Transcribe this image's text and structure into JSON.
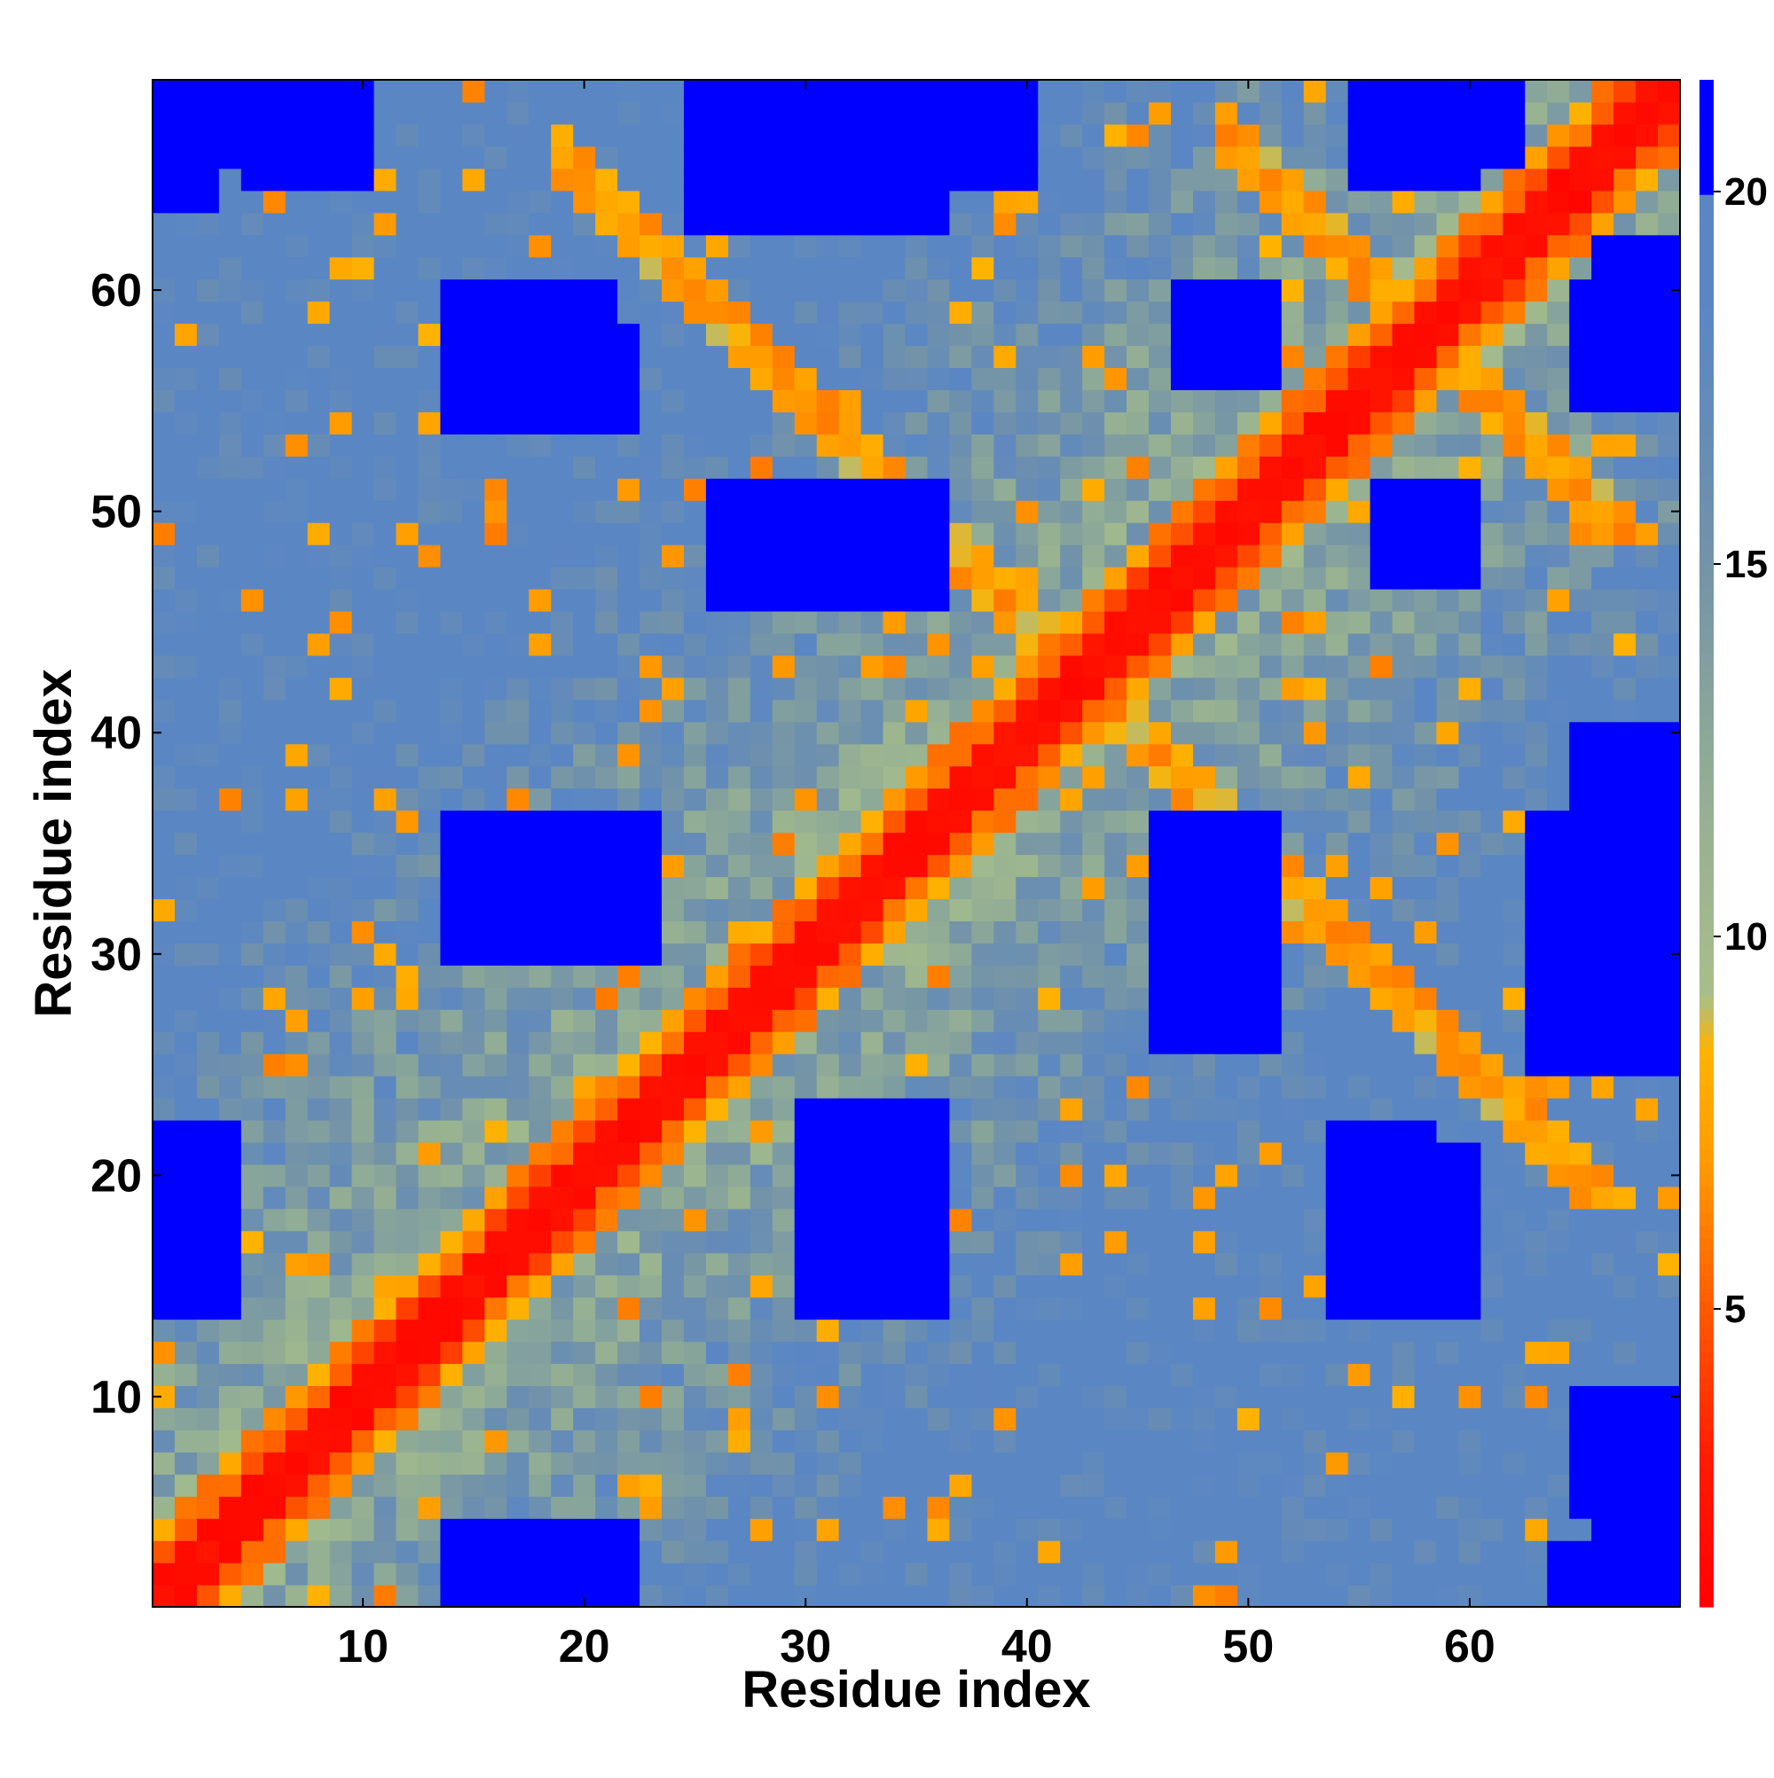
{
  "chart_data": {
    "type": "heatmap",
    "title": "",
    "xlabel": "Residue index",
    "ylabel": "Residue index",
    "xlim": [
      0.5,
      69.5
    ],
    "ylim": [
      0.5,
      69.5
    ],
    "n_residues": 69,
    "x_ticks": [
      10,
      20,
      30,
      40,
      50,
      60
    ],
    "y_ticks": [
      10,
      20,
      30,
      40,
      50,
      60
    ],
    "colorbar": {
      "range": [
        1,
        21.5
      ],
      "ticks": [
        5,
        10,
        15,
        20
      ],
      "stops": [
        {
          "value": 1.0,
          "color": "#ff0000"
        },
        {
          "value": 3.0,
          "color": "#ff1c00"
        },
        {
          "value": 5.0,
          "color": "#ff5a00"
        },
        {
          "value": 7.0,
          "color": "#ff9c00"
        },
        {
          "value": 8.5,
          "color": "#ffb300"
        },
        {
          "value": 9.2,
          "color": "#a8bf8a"
        },
        {
          "value": 12.0,
          "color": "#93ae94"
        },
        {
          "value": 15.0,
          "color": "#7393a8"
        },
        {
          "value": 18.5,
          "color": "#5a86c4"
        },
        {
          "value": 19.9,
          "color": "#5a86c4"
        },
        {
          "value": 20.0,
          "color": "#0000ff"
        },
        {
          "value": 21.5,
          "color": "#0000ff"
        }
      ]
    },
    "value_description": "Pairwise residue distance matrix (symmetric). Values of 20 and above shown in blue.",
    "blue_regions": [
      [
        16,
        22,
        30,
        36
      ],
      [
        30,
        36,
        16,
        22
      ],
      [
        30,
        36,
        14,
        23
      ],
      [
        14,
        23,
        30,
        36
      ],
      [
        30,
        35,
        47,
        51
      ],
      [
        47,
        51,
        30,
        35
      ],
      [
        47,
        51,
        56,
        60
      ],
      [
        56,
        60,
        47,
        51
      ],
      [
        56,
        60,
        14,
        21
      ],
      [
        14,
        21,
        56,
        60
      ],
      [
        65,
        69,
        26,
        40
      ],
      [
        26,
        40,
        65,
        69
      ],
      [
        46,
        51,
        26,
        36
      ],
      [
        26,
        36,
        46,
        51
      ],
      [
        1,
        4,
        14,
        22
      ],
      [
        14,
        22,
        1,
        4
      ],
      [
        14,
        20,
        1,
        4
      ],
      [
        1,
        4,
        14,
        20
      ],
      [
        25,
        35,
        66,
        69
      ],
      [
        66,
        69,
        25,
        35
      ],
      [
        56,
        62,
        66,
        69
      ],
      [
        66,
        69,
        56,
        62
      ],
      [
        65,
        69,
        55,
        60
      ],
      [
        55,
        60,
        65,
        69
      ],
      [
        14,
        22,
        54,
        58
      ],
      [
        54,
        58,
        14,
        22
      ],
      [
        5,
        10,
        65,
        69
      ],
      [
        65,
        69,
        5,
        10
      ],
      [
        66,
        69,
        1,
        4
      ],
      [
        1,
        4,
        66,
        69
      ],
      [
        1,
        3,
        64,
        69
      ],
      [
        64,
        69,
        1,
        3
      ],
      [
        16,
        20,
        1,
        3
      ],
      [
        1,
        3,
        16,
        20
      ],
      [
        25,
        36,
        63,
        69
      ],
      [
        63,
        69,
        25,
        36
      ]
    ]
  }
}
